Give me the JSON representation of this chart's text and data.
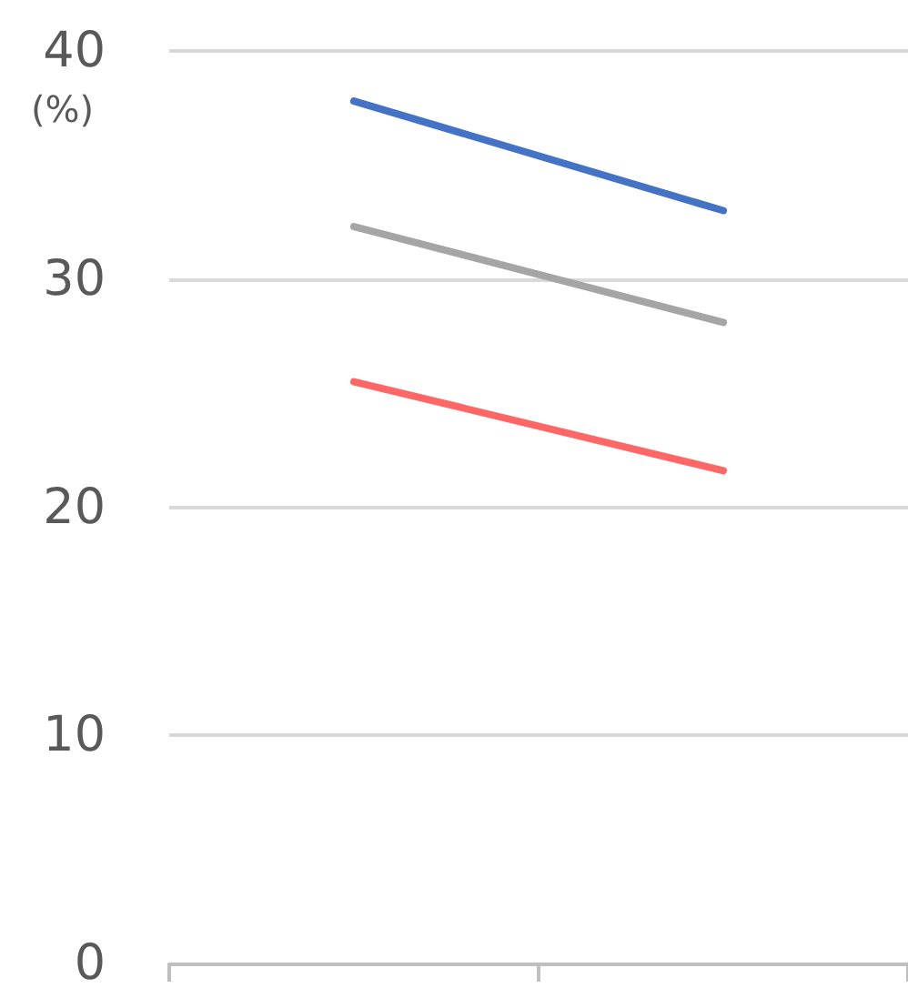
{
  "chart_data": {
    "type": "line",
    "ylabel": "(%)",
    "categories": [
      null,
      null
    ],
    "series": [
      {
        "color": "#4472c4",
        "values": [
          37.8,
          33.0
        ]
      },
      {
        "color": "#a5a5a5",
        "values": [
          32.3,
          28.1
        ]
      },
      {
        "color": "#ff6666",
        "values": [
          25.5,
          21.6
        ]
      }
    ],
    "ylim": [
      0,
      40
    ],
    "yticks": [
      0,
      10,
      20,
      30,
      40
    ],
    "grid": "y",
    "marker": "none",
    "line_style": "solid"
  }
}
